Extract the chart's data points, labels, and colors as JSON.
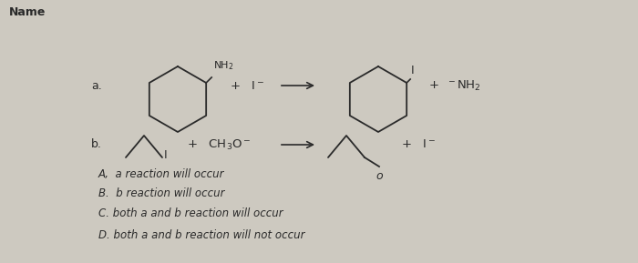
{
  "background_color": "#cdc9c0",
  "fig_width": 7.0,
  "fig_height": 2.89,
  "dpi": 100,
  "answer_choices": [
    "A,  a reaction will occur",
    "B.  b reaction will occur",
    "C. both a and b reaction will occur",
    "D. both a and b reaction will not occur"
  ],
  "text_color": "#2a2a2a",
  "name_label": "Name"
}
